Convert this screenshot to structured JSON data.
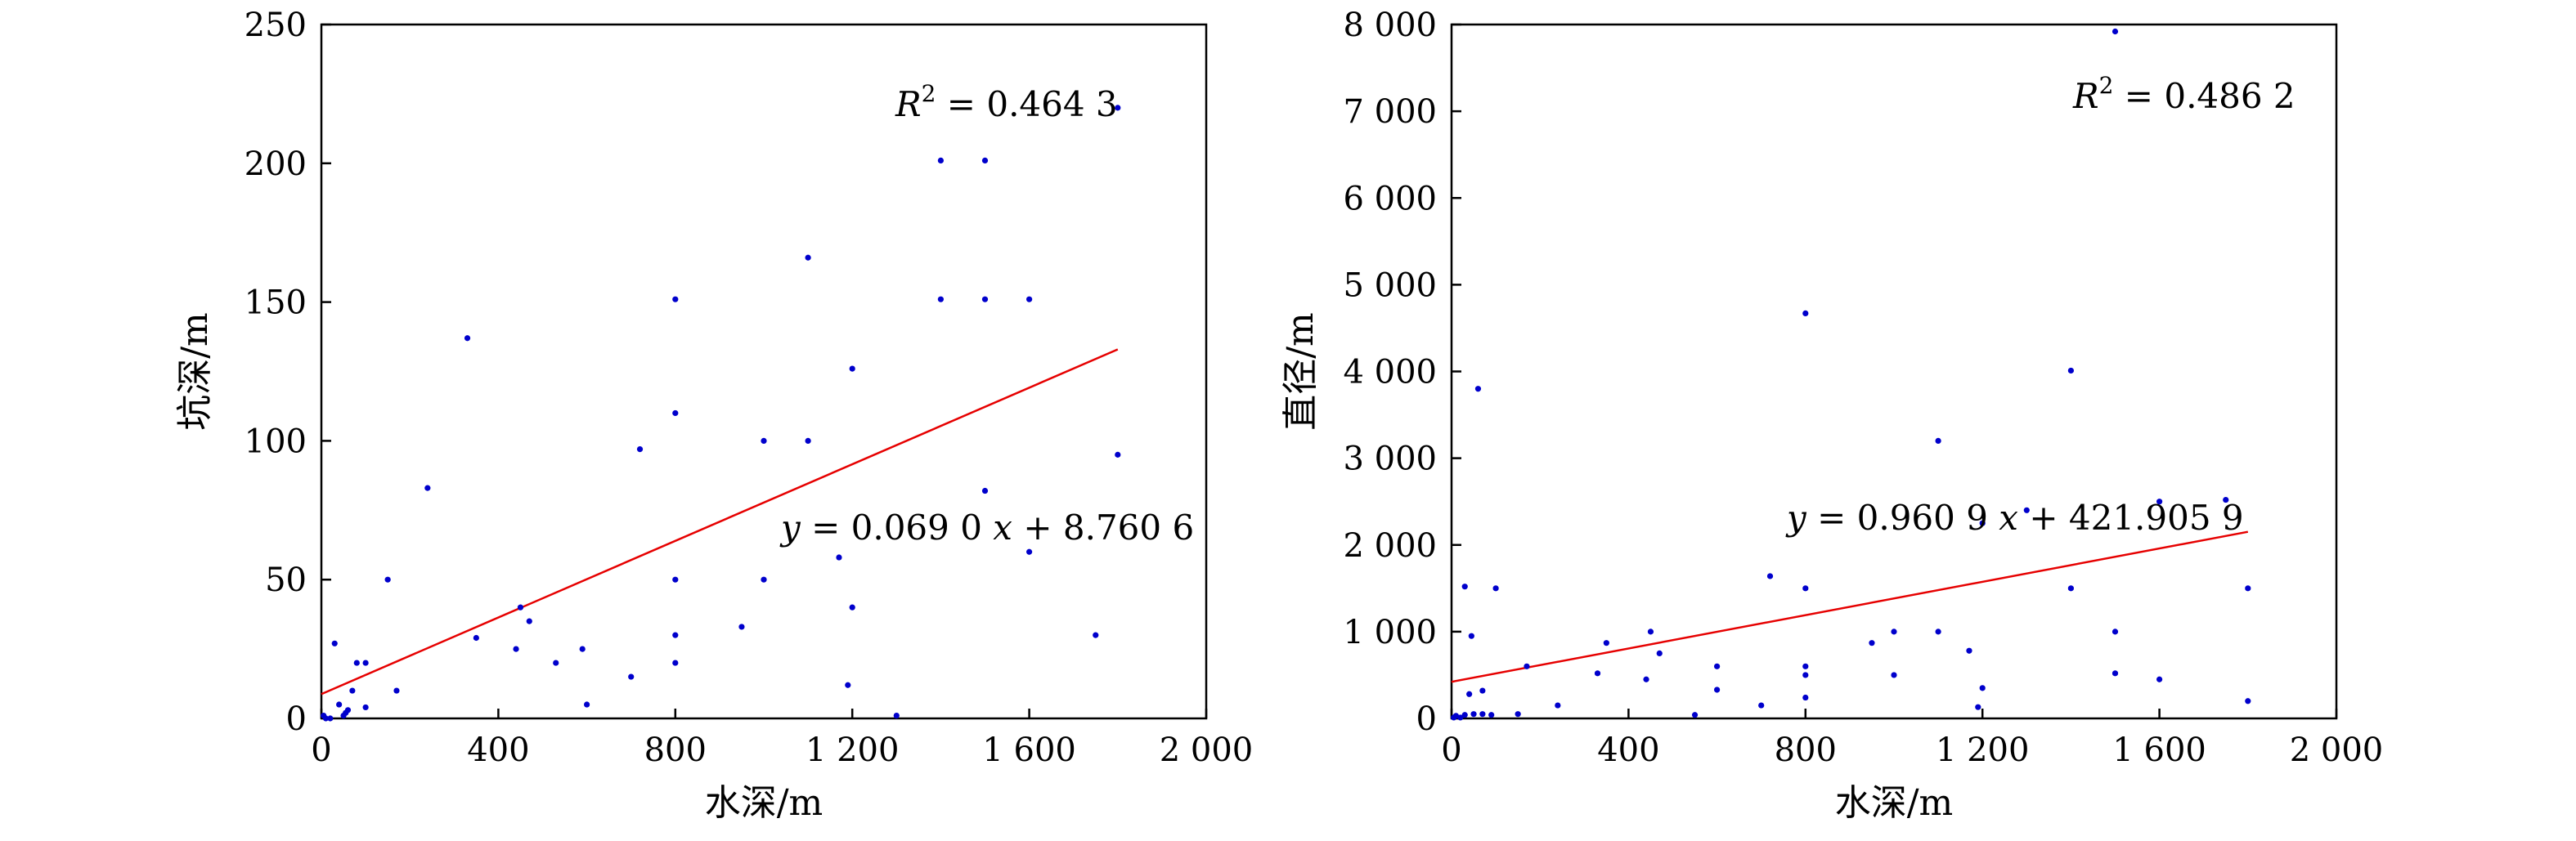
{
  "colors": {
    "points": "#0000cc",
    "fit_line": "#e60000",
    "axes": "#000000"
  },
  "chart_data": [
    {
      "type": "scatter",
      "xlabel": "水深/m",
      "ylabel": "坑深/m",
      "xlim": [
        0,
        2000
      ],
      "ylim": [
        0,
        250
      ],
      "xticks": [
        0,
        400,
        800,
        1200,
        1600,
        2000
      ],
      "xtick_labels": [
        "0",
        "400",
        "800",
        "1 200",
        "1 600",
        "2 000"
      ],
      "yticks": [
        0,
        50,
        100,
        150,
        200,
        250
      ],
      "ytick_labels": [
        "0",
        "50",
        "100",
        "150",
        "200",
        "250"
      ],
      "r2_prefix": "R",
      "r2_sup": "2",
      "r2_value": " = 0.464 3",
      "equation_y": "y",
      "equation_mid": " = 0.069 0 ",
      "equation_x": "x",
      "equation_rest": " + 8.760 6",
      "fit": {
        "slope": 0.069,
        "intercept": 8.7606,
        "x_range": [
          0,
          1800
        ]
      },
      "points": [
        [
          5,
          1
        ],
        [
          10,
          0
        ],
        [
          20,
          0
        ],
        [
          30,
          27
        ],
        [
          40,
          5
        ],
        [
          50,
          1
        ],
        [
          55,
          2
        ],
        [
          60,
          3
        ],
        [
          70,
          10
        ],
        [
          80,
          20
        ],
        [
          100,
          20
        ],
        [
          100,
          4
        ],
        [
          150,
          50
        ],
        [
          170,
          10
        ],
        [
          240,
          83
        ],
        [
          330,
          137
        ],
        [
          350,
          29
        ],
        [
          440,
          25
        ],
        [
          450,
          40
        ],
        [
          470,
          35
        ],
        [
          530,
          20
        ],
        [
          590,
          25
        ],
        [
          600,
          5
        ],
        [
          700,
          15
        ],
        [
          720,
          97
        ],
        [
          800,
          151
        ],
        [
          800,
          110
        ],
        [
          800,
          50
        ],
        [
          800,
          30
        ],
        [
          800,
          20
        ],
        [
          950,
          33
        ],
        [
          1000,
          100
        ],
        [
          1000,
          50
        ],
        [
          1100,
          166
        ],
        [
          1100,
          100
        ],
        [
          1170,
          58
        ],
        [
          1190,
          12
        ],
        [
          1200,
          126
        ],
        [
          1200,
          40
        ],
        [
          1300,
          1
        ],
        [
          1400,
          201
        ],
        [
          1400,
          151
        ],
        [
          1500,
          201
        ],
        [
          1500,
          151
        ],
        [
          1500,
          82
        ],
        [
          1600,
          151
        ],
        [
          1600,
          60
        ],
        [
          1750,
          30
        ],
        [
          1800,
          220
        ],
        [
          1800,
          95
        ]
      ]
    },
    {
      "type": "scatter",
      "xlabel": "水深/m",
      "ylabel": "直径/m",
      "xlim": [
        0,
        2000
      ],
      "ylim": [
        0,
        8000
      ],
      "xticks": [
        0,
        400,
        800,
        1200,
        1600,
        2000
      ],
      "xtick_labels": [
        "0",
        "400",
        "800",
        "1 200",
        "1 600",
        "2 000"
      ],
      "yticks": [
        0,
        1000,
        2000,
        3000,
        4000,
        5000,
        6000,
        7000,
        8000
      ],
      "ytick_labels": [
        "0",
        "1 000",
        "2 000",
        "3 000",
        "4 000",
        "5 000",
        "6 000",
        "7 000",
        "8 000"
      ],
      "r2_prefix": "R",
      "r2_sup": "2",
      "r2_value": " = 0.486 2",
      "equation_y": "y",
      "equation_mid": " = 0.960 9 ",
      "equation_x": "x",
      "equation_rest": " + 421.905 9",
      "fit": {
        "slope": 0.9609,
        "intercept": 421.9059,
        "x_range": [
          0,
          1800
        ]
      },
      "points": [
        [
          5,
          10
        ],
        [
          10,
          30
        ],
        [
          20,
          10
        ],
        [
          30,
          40
        ],
        [
          30,
          1520
        ],
        [
          40,
          280
        ],
        [
          45,
          950
        ],
        [
          50,
          50
        ],
        [
          60,
          3800
        ],
        [
          70,
          50
        ],
        [
          70,
          320
        ],
        [
          90,
          40
        ],
        [
          100,
          1500
        ],
        [
          150,
          50
        ],
        [
          170,
          600
        ],
        [
          240,
          150
        ],
        [
          330,
          520
        ],
        [
          350,
          870
        ],
        [
          440,
          450
        ],
        [
          450,
          1000
        ],
        [
          470,
          750
        ],
        [
          550,
          40
        ],
        [
          600,
          600
        ],
        [
          600,
          330
        ],
        [
          700,
          150
        ],
        [
          720,
          1640
        ],
        [
          800,
          4670
        ],
        [
          800,
          1500
        ],
        [
          800,
          600
        ],
        [
          800,
          500
        ],
        [
          800,
          240
        ],
        [
          950,
          870
        ],
        [
          1000,
          1000
        ],
        [
          1000,
          500
        ],
        [
          1100,
          3200
        ],
        [
          1100,
          1000
        ],
        [
          1170,
          780
        ],
        [
          1190,
          130
        ],
        [
          1200,
          2250
        ],
        [
          1200,
          350
        ],
        [
          1300,
          2400
        ],
        [
          1400,
          4010
        ],
        [
          1400,
          1500
        ],
        [
          1500,
          7920
        ],
        [
          1500,
          1000
        ],
        [
          1500,
          520
        ],
        [
          1600,
          2500
        ],
        [
          1600,
          450
        ],
        [
          1750,
          2520
        ],
        [
          1800,
          1500
        ],
        [
          1800,
          200
        ]
      ]
    }
  ]
}
